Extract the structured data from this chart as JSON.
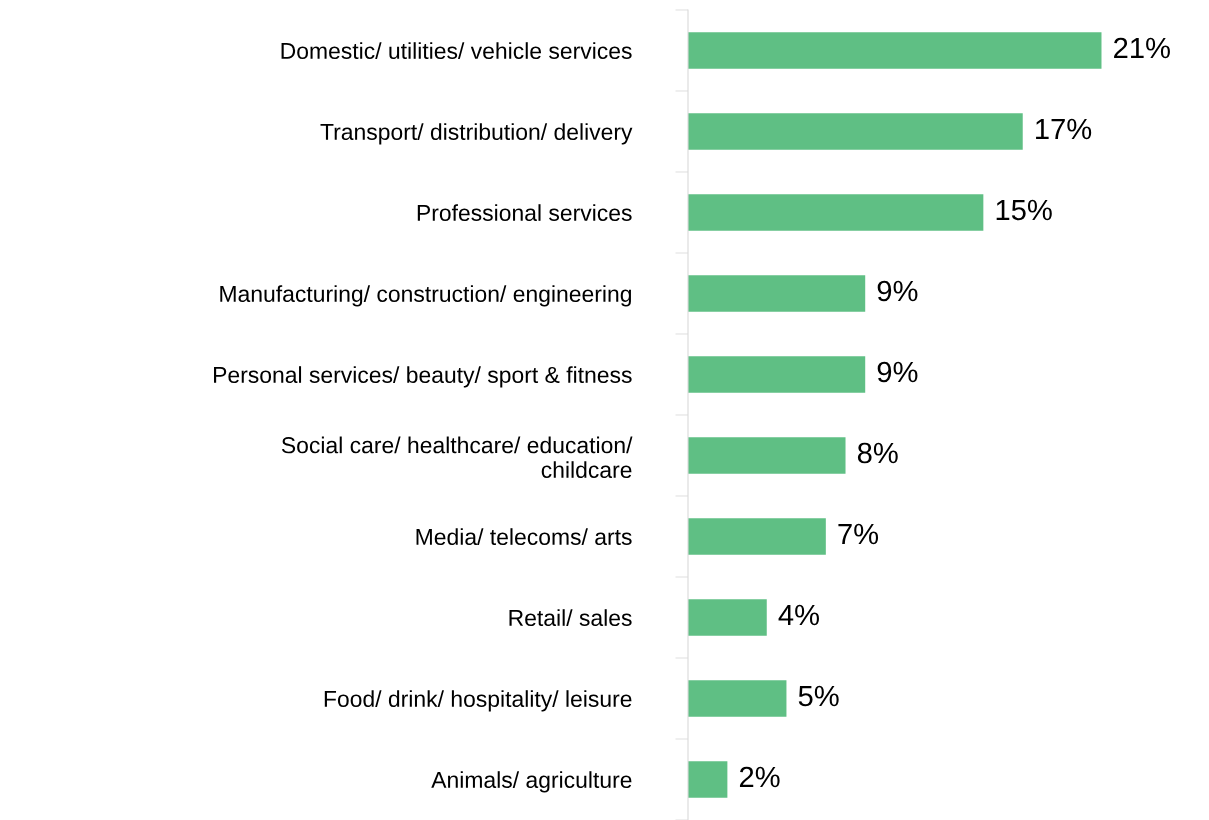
{
  "chart_data": {
    "type": "bar",
    "orientation": "horizontal",
    "categories": [
      "Domestic/ utilities/ vehicle services",
      "Transport/ distribution/ delivery",
      "Professional services",
      "Manufacturing/ construction/ engineering",
      "Personal services/ beauty/ sport & fitness",
      "Social care/ healthcare/ education/\nchildcare",
      "Media/ telecoms/ arts",
      "Retail/ sales",
      "Food/ drink/ hospitality/ leisure",
      "Animals/ agriculture"
    ],
    "values": [
      21,
      17,
      15,
      9,
      9,
      8,
      7,
      4,
      5,
      2
    ],
    "value_labels": [
      "21%",
      "17%",
      "15%",
      "9%",
      "9%",
      "8%",
      "7%",
      "4%",
      "5%",
      "2%"
    ],
    "color": "#5fbf84",
    "grid": false,
    "legend": false
  }
}
